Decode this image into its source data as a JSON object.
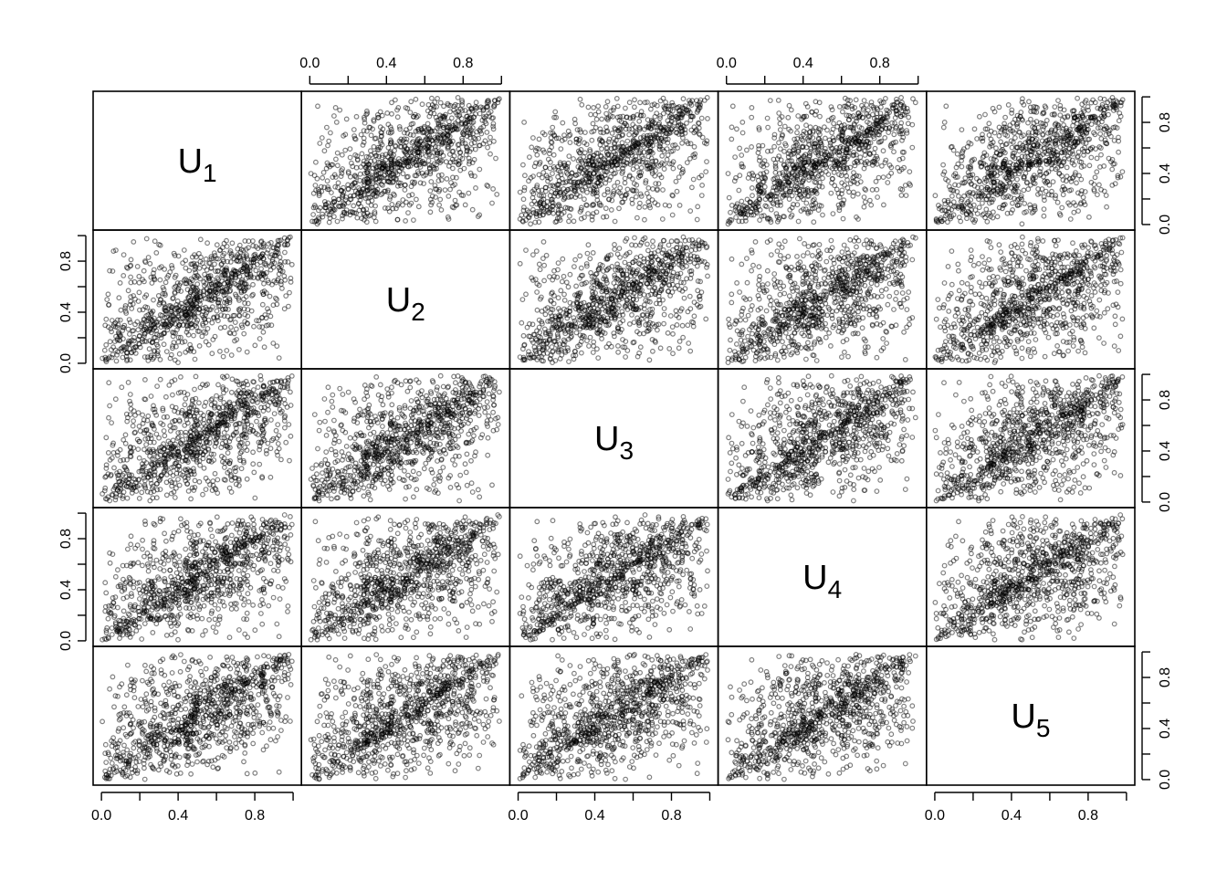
{
  "chart_data": {
    "type": "scatter",
    "subtype": "scatterplot-matrix",
    "variables": [
      {
        "name": "U",
        "subscript": "1"
      },
      {
        "name": "U",
        "subscript": "2"
      },
      {
        "name": "U",
        "subscript": "3"
      },
      {
        "name": "U",
        "subscript": "4"
      },
      {
        "name": "U",
        "subscript": "5"
      }
    ],
    "axis_range": [
      0.0,
      1.0
    ],
    "ticks": [
      0.0,
      0.2,
      0.4,
      0.6,
      0.8,
      1.0
    ],
    "tick_labels": [
      "0.0",
      "0.4",
      "0.8"
    ],
    "points_per_panel": 1000,
    "dependence": "strong positive, concentrated along the diagonal with tightest clustering near (0,0) and (1,1)",
    "marker": "open circle",
    "marker_color": "#000000",
    "marker_opacity": 0.5,
    "grid": false,
    "legend": "none",
    "axes": {
      "top": [
        1,
        3
      ],
      "bottom": [
        0,
        2,
        4
      ],
      "left": [
        1,
        3
      ],
      "right": [
        0,
        2,
        4
      ]
    }
  }
}
